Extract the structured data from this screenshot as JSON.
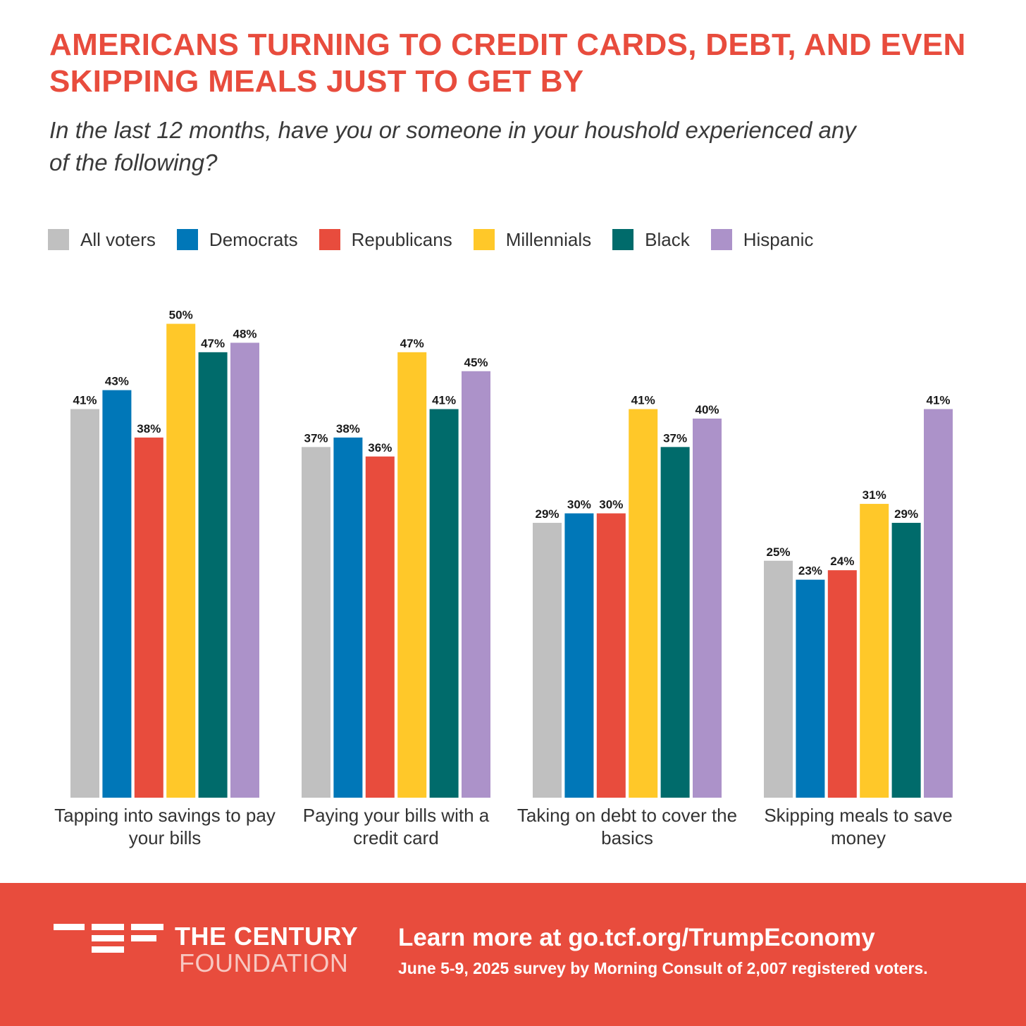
{
  "header": {
    "title_line1": "AMERICANS TURNING TO CREDIT CARDS, DEBT, AND EVEN",
    "title_line2": "SKIPPING MEALS JUST TO GET BY",
    "subtitle": "In the last 12 months, have you or someone in your houshold experienced any of the following?"
  },
  "chart_data": {
    "type": "bar",
    "title": "AMERICANS TURNING TO CREDIT CARDS, DEBT, AND EVEN SKIPPING MEALS JUST TO GET BY",
    "subtitle": "In the last 12 months, have you or someone in your houshold experienced any of the following?",
    "xlabel": "",
    "ylabel": "",
    "ylim": [
      0,
      50
    ],
    "grid": false,
    "legend": "top-left",
    "value_suffix": "%",
    "categories": [
      [
        "Tapping into savings to pay",
        "your bills"
      ],
      [
        "Paying your bills with a",
        "credit card"
      ],
      [
        "Taking on debt to cover the",
        "basics"
      ],
      [
        "Skipping meals to save",
        "money"
      ]
    ],
    "series": [
      {
        "name": "All voters",
        "color": "#C0C0C0",
        "values": [
          41,
          37,
          29,
          25
        ]
      },
      {
        "name": "Democrats",
        "color": "#0077B8",
        "values": [
          43,
          38,
          30,
          23
        ]
      },
      {
        "name": "Republicans",
        "color": "#E84C3D",
        "values": [
          38,
          36,
          30,
          24
        ]
      },
      {
        "name": "Millennials",
        "color": "#FFC829",
        "values": [
          50,
          47,
          41,
          31
        ]
      },
      {
        "name": "Black",
        "color": "#006B6B",
        "values": [
          47,
          41,
          37,
          29
        ]
      },
      {
        "name": "Hispanic",
        "color": "#AC92C9",
        "values": [
          48,
          45,
          40,
          41
        ]
      }
    ]
  },
  "footer": {
    "org_name": "THE CENTURY",
    "org_sub": "FOUNDATION",
    "cta": "Learn more at go.tcf.org/TrumpEconomy",
    "source": "June 5-9, 2025 survey by Morning Consult of 2,007 registered voters.",
    "background_color": "#E84C3D"
  }
}
